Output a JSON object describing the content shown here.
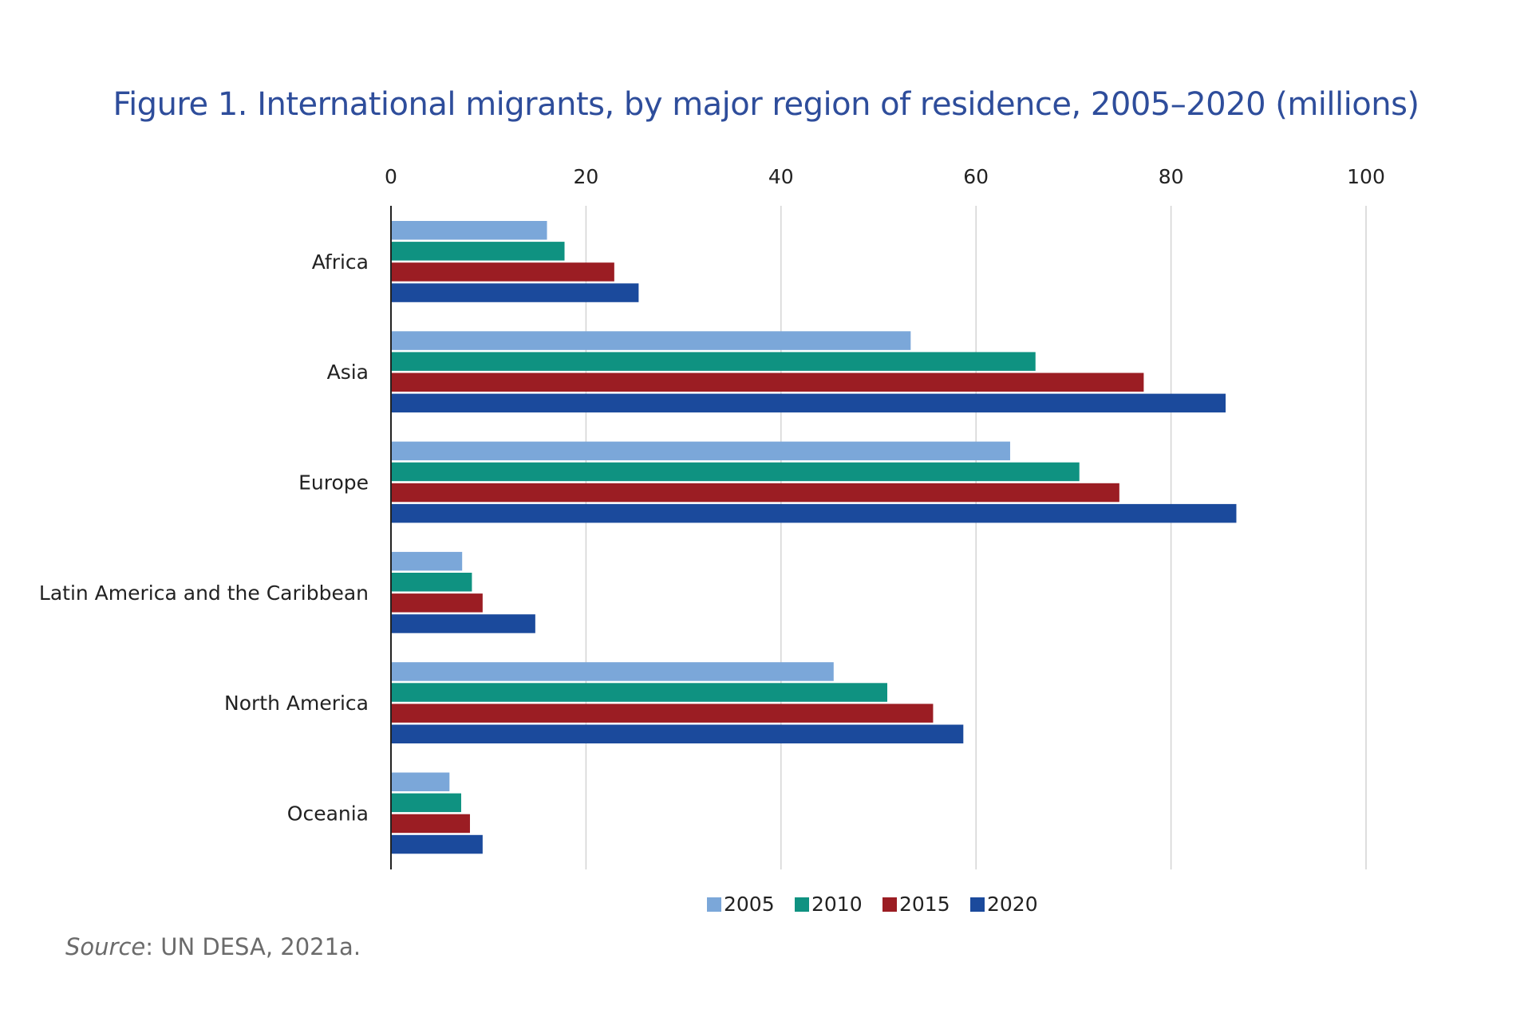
{
  "title": "Figure 1. International migrants, by major region of residence, 2005–2020 (millions)",
  "source": {
    "label": "Source",
    "text": ": UN DESA, 2021a."
  },
  "colors": {
    "2005": "#7ba7d9",
    "2010": "#0f9281",
    "2015": "#9b1d23",
    "2020": "#1b4a9c"
  },
  "chart_data": {
    "type": "bar",
    "orientation": "horizontal",
    "title": "Figure 1. International migrants, by major region of residence, 2005–2020 (millions)",
    "categories": [
      "Africa",
      "Asia",
      "Europe",
      "Latin America and the Caribbean",
      "North America",
      "Oceania"
    ],
    "series": [
      {
        "name": "2005",
        "values": [
          16.0,
          53.3,
          63.5,
          7.3,
          45.4,
          6.0
        ]
      },
      {
        "name": "2010",
        "values": [
          17.8,
          66.1,
          70.6,
          8.3,
          50.9,
          7.2
        ]
      },
      {
        "name": "2015",
        "values": [
          22.9,
          77.2,
          74.7,
          9.4,
          55.6,
          8.1
        ]
      },
      {
        "name": "2020",
        "values": [
          25.4,
          85.6,
          86.7,
          14.8,
          58.7,
          9.4
        ]
      }
    ],
    "xlim": [
      0,
      100
    ],
    "xticks": [
      0,
      20,
      40,
      60,
      80,
      100
    ],
    "xaxis_position": "top",
    "grid": true,
    "legend_position": "bottom"
  }
}
